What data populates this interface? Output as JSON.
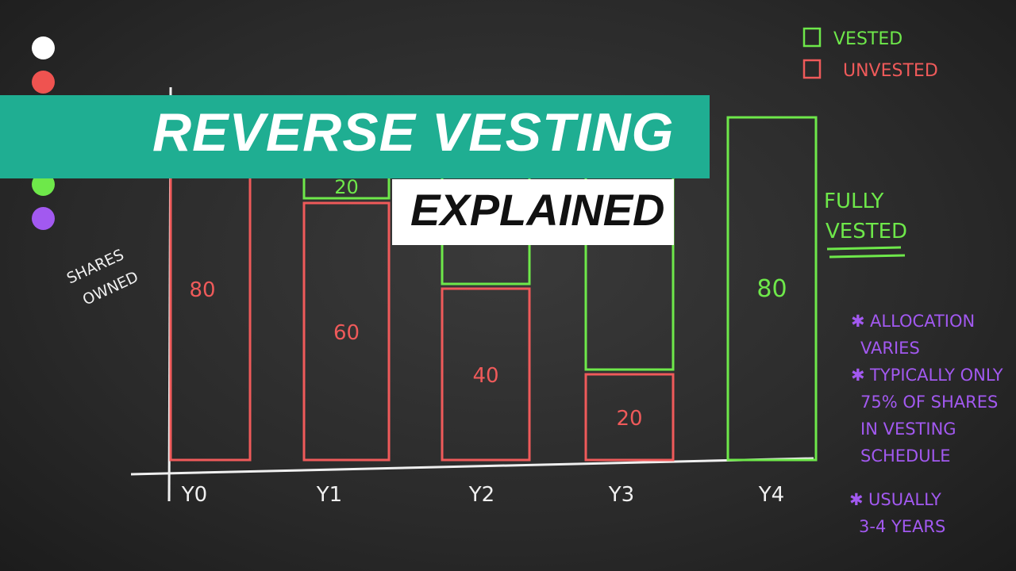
{
  "title": "REVERSE VESTING",
  "subtitle": "EXPLAINED",
  "dots": [
    "#ffffff",
    "#ef5350",
    "#1fc4a8",
    "#3dbf7f",
    "#6ee84a",
    "#a259f0"
  ],
  "colors": {
    "vested": "#6ee84a",
    "unvested": "#ef5a5a",
    "notes": "#a259f0",
    "chalk": "#f0f0f0",
    "banner": "#1fae92"
  },
  "chart_data": {
    "type": "bar",
    "stacked": true,
    "ylabel": "SHARES OWNED",
    "categories": [
      "Y0",
      "Y1",
      "Y2",
      "Y3",
      "Y4"
    ],
    "series": [
      {
        "name": "UNVESTED",
        "values": [
          80,
          60,
          40,
          20,
          0
        ]
      },
      {
        "name": "VESTED",
        "values": [
          0,
          20,
          40,
          60,
          80
        ]
      }
    ],
    "data_labels": {
      "unvested": [
        "80",
        "60",
        "40",
        "20",
        ""
      ],
      "vested": [
        "",
        "20",
        "",
        "",
        "80"
      ]
    },
    "legend": {
      "placement": "top-right",
      "items": [
        "VESTED",
        "UNVESTED"
      ]
    },
    "ylim": [
      0,
      80
    ],
    "grid": false,
    "annotation": "FULLY VESTED"
  },
  "notes": [
    {
      "lines": [
        "ALLOCATION",
        "VARIES"
      ]
    },
    {
      "lines": [
        "TYPICALLY ONLY",
        "75% OF SHARES",
        "IN VESTING",
        "SCHEDULE"
      ]
    },
    {
      "lines": [
        "USUALLY",
        "3-4 YEARS"
      ]
    }
  ]
}
